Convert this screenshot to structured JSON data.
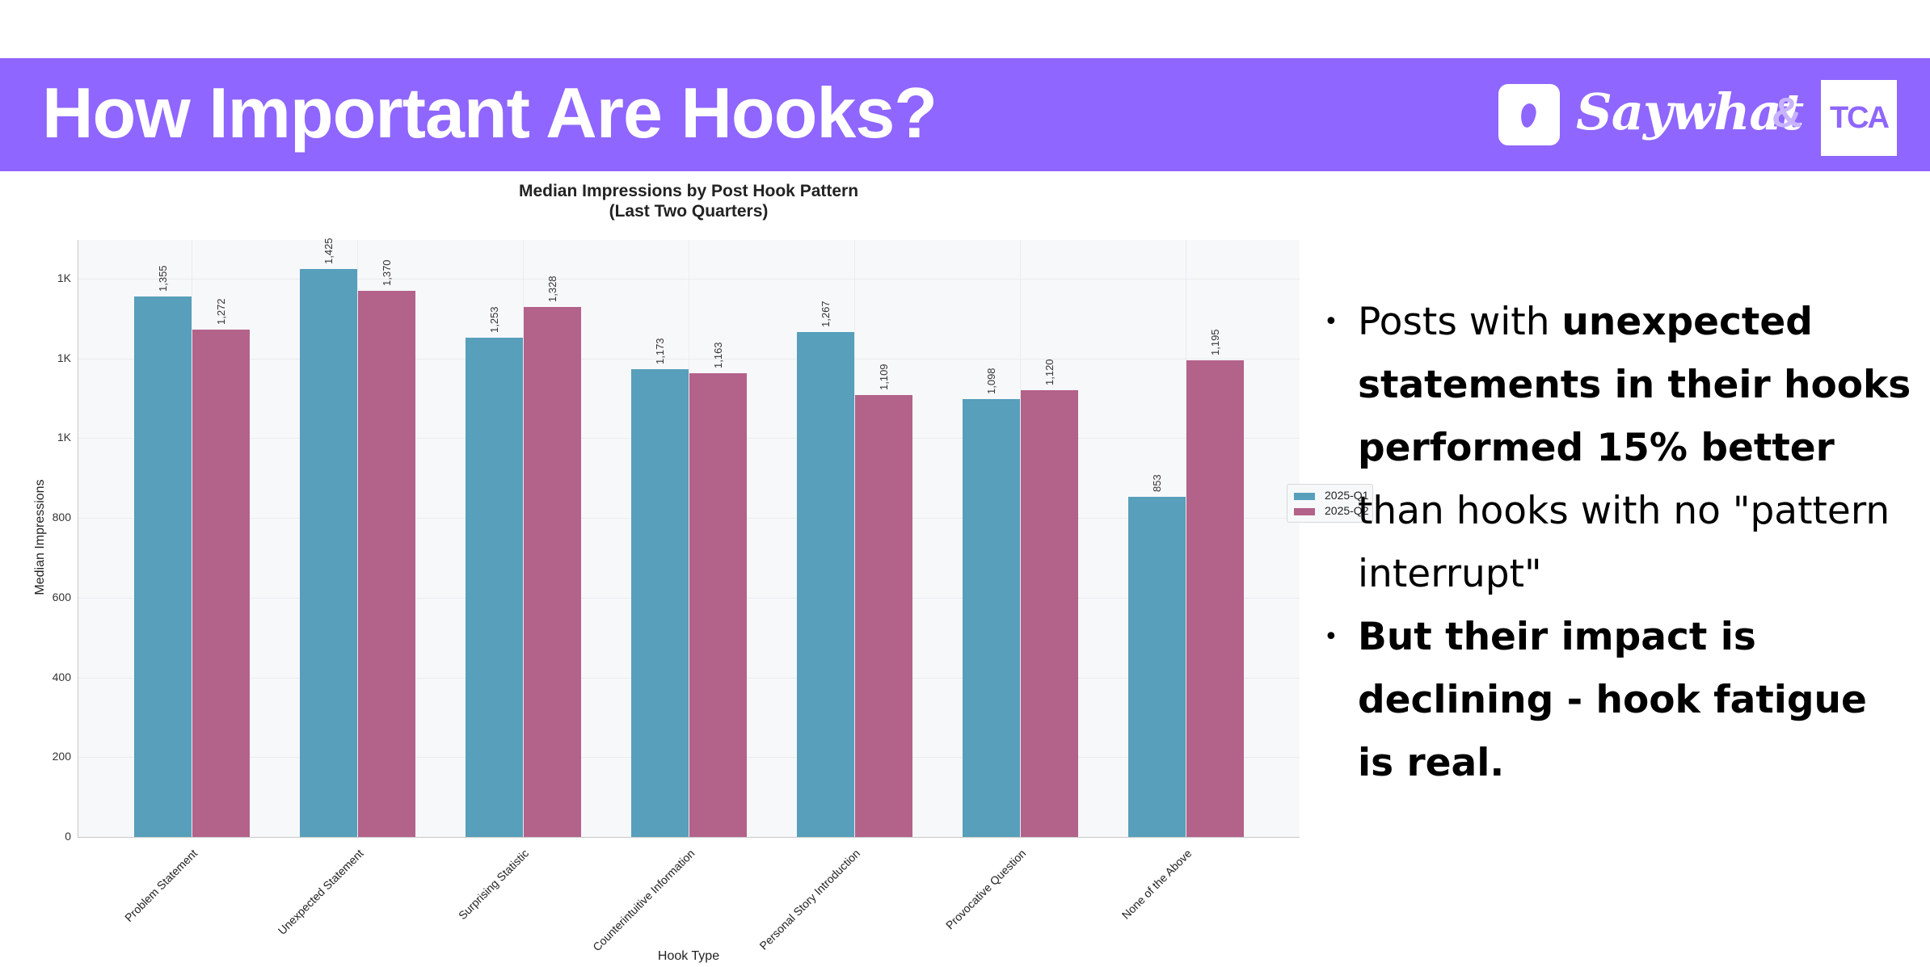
{
  "header": {
    "title": "How Important Are Hooks?",
    "brand_name": "Saywhat",
    "ampersand": "&",
    "partner_logo": "TCA",
    "banner_color": "#8f66ff"
  },
  "bullets": [
    {
      "prefix": "Posts with ",
      "bold": "unexpected statements in their hooks performed 15% better",
      "suffix": " than hooks with no \"pattern interrupt\""
    },
    {
      "prefix": "",
      "bold": "But their impact is declining - hook fatigue is real.",
      "suffix": ""
    }
  ],
  "chart_data": {
    "type": "bar",
    "title": "Median Impressions by Post Hook Pattern",
    "subtitle": "(Last Two Quarters)",
    "xlabel": "Hook Type",
    "ylabel": "Median Impressions",
    "categories": [
      "Problem Statement",
      "Unexpected Statement",
      "Surprising Statistic",
      "Counterintuitive Information",
      "Personal Story Introduction",
      "Provocative Question",
      "None of the Above"
    ],
    "series": [
      {
        "name": "2025-Q1",
        "color": "#579fba",
        "values": [
          1355,
          1425,
          1253,
          1173,
          1267,
          1098,
          853
        ],
        "labels": [
          "1,355",
          "1,425",
          "1,253",
          "1,173",
          "1,267",
          "1,098",
          "853"
        ]
      },
      {
        "name": "2025-Q2",
        "color": "#b3628a",
        "values": [
          1272,
          1370,
          1328,
          1163,
          1109,
          1120,
          1195
        ],
        "labels": [
          "1,272",
          "1,370",
          "1,328",
          "1,163",
          "1,109",
          "1,120",
          "1,195"
        ]
      }
    ],
    "yticks": [
      {
        "value": 0,
        "label": "0"
      },
      {
        "value": 200,
        "label": "200"
      },
      {
        "value": 400,
        "label": "400"
      },
      {
        "value": 600,
        "label": "600"
      },
      {
        "value": 800,
        "label": "800"
      },
      {
        "value": 1000,
        "label": "1K"
      },
      {
        "value": 1200,
        "label": "1K"
      },
      {
        "value": 1400,
        "label": "1K"
      }
    ],
    "ylim": [
      0,
      1497
    ],
    "grid": true,
    "legend_position": "upper right"
  }
}
